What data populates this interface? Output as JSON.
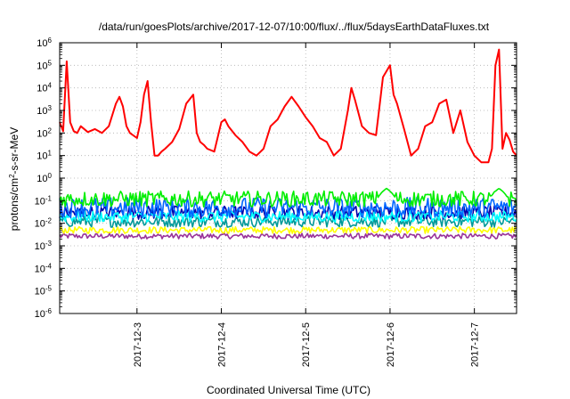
{
  "chart_data": {
    "type": "line",
    "title": "/data/run/goesPlots/archive/2017-12-07/10:00/flux/../flux/5daysEarthDataFluxes.txt",
    "xlabel": "Coordinated Universal Time (UTC)",
    "ylabel_main": "protons/cm",
    "ylabel_sup": "2",
    "ylabel_rest": "-s-sr-MeV",
    "yscale": "log",
    "ylim": [
      1e-06,
      1000000.0
    ],
    "xlim": [
      "2017-12-02T02:00",
      "2017-12-07T12:00"
    ],
    "grid": true,
    "y_ticks": [
      {
        "value": 1e-06,
        "base": "10",
        "exp": "-6"
      },
      {
        "value": 1e-05,
        "base": "10",
        "exp": "-5"
      },
      {
        "value": 0.0001,
        "base": "10",
        "exp": "-4"
      },
      {
        "value": 0.001,
        "base": "10",
        "exp": "-3"
      },
      {
        "value": 0.01,
        "base": "10",
        "exp": "-2"
      },
      {
        "value": 0.1,
        "base": "10",
        "exp": "-1"
      },
      {
        "value": 1,
        "base": "10",
        "exp": "0"
      },
      {
        "value": 10,
        "base": "10",
        "exp": "1"
      },
      {
        "value": 100,
        "base": "10",
        "exp": "2"
      },
      {
        "value": 1000,
        "base": "10",
        "exp": "3"
      },
      {
        "value": 10000,
        "base": "10",
        "exp": "4"
      },
      {
        "value": 100000,
        "base": "10",
        "exp": "5"
      },
      {
        "value": 1000000,
        "base": "10",
        "exp": "6"
      }
    ],
    "x_ticks": [
      {
        "value": "2017-12-03T00:00",
        "label": "2017-12-3"
      },
      {
        "value": "2017-12-04T00:00",
        "label": "2017-12-4"
      },
      {
        "value": "2017-12-05T00:00",
        "label": "2017-12-5"
      },
      {
        "value": "2017-12-06T00:00",
        "label": "2017-12-6"
      },
      {
        "value": "2017-12-07T00:00",
        "label": "2017-12-7"
      }
    ],
    "series": [
      {
        "color": "#ff0000",
        "kind": "spiky",
        "x": [
          "2017-12-02T02:00",
          "2017-12-02T03:00",
          "2017-12-02T04:00",
          "2017-12-02T05:00",
          "2017-12-02T06:00",
          "2017-12-02T07:00",
          "2017-12-02T08:00",
          "2017-12-02T10:00",
          "2017-12-02T12:00",
          "2017-12-02T14:00",
          "2017-12-02T16:00",
          "2017-12-02T18:00",
          "2017-12-02T19:00",
          "2017-12-02T20:00",
          "2017-12-02T21:00",
          "2017-12-02T22:00",
          "2017-12-03T00:00",
          "2017-12-03T01:00",
          "2017-12-03T02:00",
          "2017-12-03T03:00",
          "2017-12-03T04:00",
          "2017-12-03T05:00",
          "2017-12-03T06:00",
          "2017-12-03T07:00",
          "2017-12-03T08:00",
          "2017-12-03T10:00",
          "2017-12-03T12:00",
          "2017-12-03T14:00",
          "2017-12-03T16:00",
          "2017-12-03T17:00",
          "2017-12-03T18:00",
          "2017-12-03T19:00",
          "2017-12-03T20:00",
          "2017-12-03T22:00",
          "2017-12-04T00:00",
          "2017-12-04T01:00",
          "2017-12-04T02:00",
          "2017-12-04T04:00",
          "2017-12-04T06:00",
          "2017-12-04T08:00",
          "2017-12-04T10:00",
          "2017-12-04T12:00",
          "2017-12-04T14:00",
          "2017-12-04T16:00",
          "2017-12-04T18:00",
          "2017-12-04T20:00",
          "2017-12-04T22:00",
          "2017-12-05T00:00",
          "2017-12-05T02:00",
          "2017-12-05T04:00",
          "2017-12-05T06:00",
          "2017-12-05T08:00",
          "2017-12-05T10:00",
          "2017-12-05T12:00",
          "2017-12-05T13:00",
          "2017-12-05T14:00",
          "2017-12-05T16:00",
          "2017-12-05T18:00",
          "2017-12-05T20:00",
          "2017-12-05T21:00",
          "2017-12-05T22:00",
          "2017-12-06T00:00",
          "2017-12-06T01:00",
          "2017-12-06T02:00",
          "2017-12-06T04:00",
          "2017-12-06T06:00",
          "2017-12-06T08:00",
          "2017-12-06T10:00",
          "2017-12-06T12:00",
          "2017-12-06T14:00",
          "2017-12-06T16:00",
          "2017-12-06T18:00",
          "2017-12-06T20:00",
          "2017-12-06T22:00",
          "2017-12-07T00:00",
          "2017-12-07T02:00",
          "2017-12-07T04:00",
          "2017-12-07T05:00",
          "2017-12-07T06:00",
          "2017-12-07T07:00",
          "2017-12-07T08:00",
          "2017-12-07T09:00",
          "2017-12-07T10:00",
          "2017-12-07T11:00",
          "2017-12-07T12:00"
        ],
        "y": [
          300,
          120,
          150000,
          300,
          120,
          100,
          200,
          110,
          150,
          100,
          200,
          2000,
          4000,
          1500,
          200,
          100,
          60,
          300,
          5000,
          20000,
          300,
          10,
          10,
          15,
          20,
          40,
          150,
          2000,
          5000,
          100,
          40,
          30,
          20,
          15,
          300,
          400,
          200,
          80,
          40,
          15,
          10,
          20,
          200,
          400,
          1500,
          4000,
          1500,
          500,
          200,
          60,
          40,
          10,
          20,
          1000,
          10000,
          3000,
          200,
          100,
          80,
          1500,
          30000,
          100000,
          5000,
          2000,
          150,
          10,
          20,
          200,
          300,
          2000,
          3000,
          100,
          1000,
          40,
          10,
          5,
          5,
          20,
          100000,
          500000,
          20,
          100,
          50,
          15,
          10
        ]
      },
      {
        "color": "#00ee00",
        "kind": "noise",
        "base": 0.12,
        "amp": 0.35,
        "peaks": [
          [
            "2017-12-05T23:00",
            0.35
          ],
          [
            "2017-12-07T07:00",
            0.35
          ]
        ]
      },
      {
        "color": "#0066ff",
        "kind": "noise",
        "base": 0.05,
        "amp": 0.45,
        "peaks": []
      },
      {
        "color": "#00ffff",
        "kind": "noise",
        "base": 0.02,
        "amp": 0.25,
        "peaks": []
      },
      {
        "color": "#0000aa",
        "kind": "noise",
        "base": 0.03,
        "amp": 0.3,
        "peaks": []
      },
      {
        "color": "#009999",
        "kind": "noise",
        "base": 0.012,
        "amp": 0.25,
        "peaks": []
      },
      {
        "color": "#ffff00",
        "kind": "noise",
        "base": 0.005,
        "amp": 0.15,
        "peaks": []
      },
      {
        "color": "#993399",
        "kind": "noise",
        "base": 0.0027,
        "amp": 0.12,
        "peaks": []
      }
    ]
  }
}
